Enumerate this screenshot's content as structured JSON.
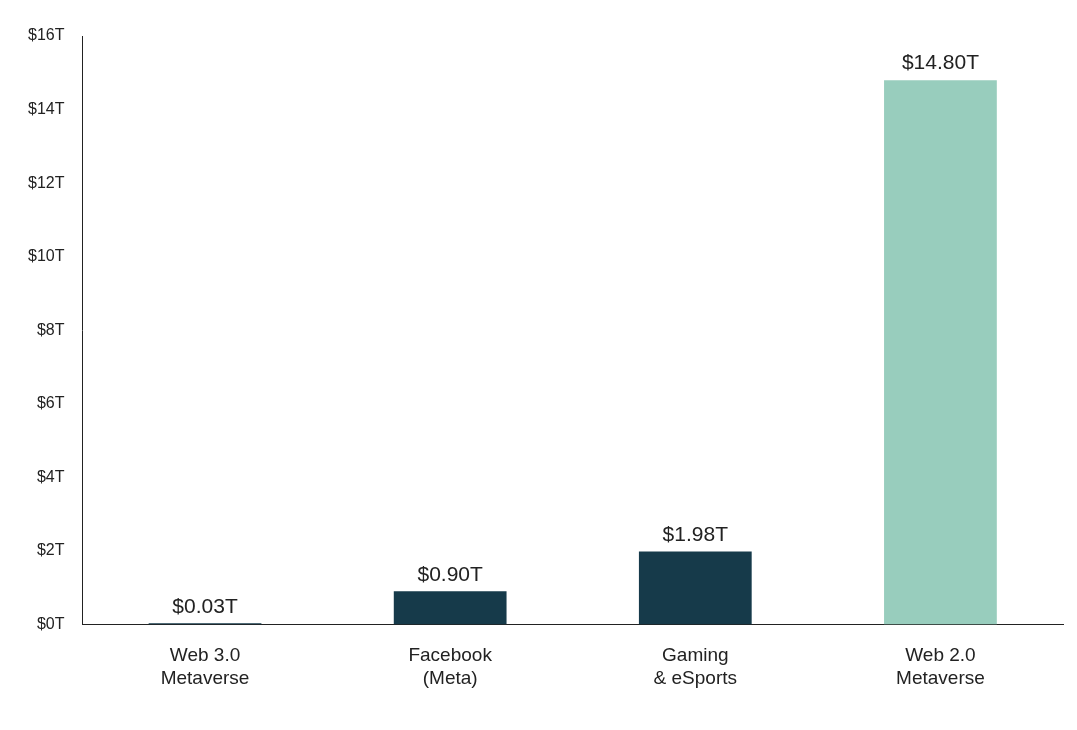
{
  "chart_data": {
    "type": "bar",
    "categories": [
      "Web 3.0\nMetaverse",
      "Facebook\n(Meta)",
      "Gaming\n& eSports",
      "Web 2.0\nMetaverse"
    ],
    "values": [
      0.03,
      0.9,
      1.98,
      14.8
    ],
    "value_labels": [
      "$0.03T",
      "$0.90T",
      "$1.98T",
      "$14.80T"
    ],
    "data_labels": true,
    "colors": [
      "#163a4a",
      "#163a4a",
      "#163a4a",
      "#98cdbd"
    ],
    "ylim": [
      0,
      16
    ],
    "yticks": [
      {
        "value": 0,
        "label": "$0T"
      },
      {
        "value": 2,
        "label": "$2T"
      },
      {
        "value": 4,
        "label": "$4T"
      },
      {
        "value": 6,
        "label": "$6T"
      },
      {
        "value": 8,
        "label": "$8T"
      },
      {
        "value": 10,
        "label": "$10T"
      },
      {
        "value": 12,
        "label": "$12T"
      },
      {
        "value": 14,
        "label": "$14T"
      },
      {
        "value": 16,
        "label": "$16T"
      }
    ],
    "grid": false
  }
}
